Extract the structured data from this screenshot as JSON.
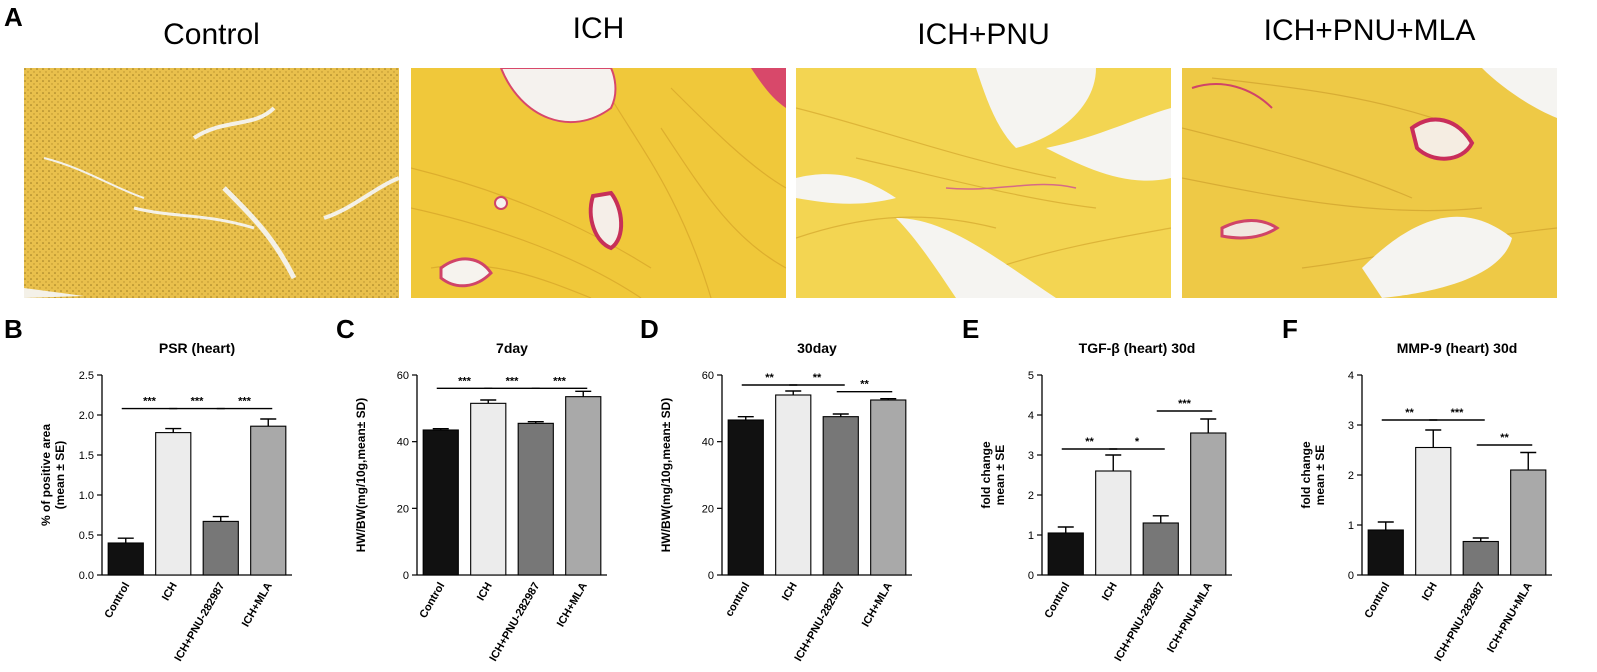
{
  "figure": {
    "panel_A_label": "A",
    "micrographs": [
      {
        "title": "Control"
      },
      {
        "title": "ICH"
      },
      {
        "title": "ICH+PNU"
      },
      {
        "title": "ICH+PNU+MLA"
      }
    ]
  },
  "chart_data": [
    {
      "panel": "B",
      "type": "bar",
      "title": "PSR (heart)",
      "ylabel": [
        "% of positive area",
        "(mean ± SE)"
      ],
      "categories": [
        "Control",
        "ICH",
        "ICH+PNU-282987",
        "ICH+MLA"
      ],
      "values": [
        0.4,
        1.78,
        0.67,
        1.86
      ],
      "errors": [
        0.06,
        0.05,
        0.06,
        0.09
      ],
      "ylim": [
        0,
        2.5
      ],
      "yticks": [
        "0.0",
        "0.5",
        "1.0",
        "1.5",
        "2.0",
        "2.5"
      ],
      "colors": [
        "#111111",
        "#ececec",
        "#777777",
        "#a9a9a9"
      ],
      "significance": [
        {
          "from": 0,
          "to": 1,
          "label": "***",
          "y": 2.08
        },
        {
          "from": 1,
          "to": 2,
          "label": "***",
          "y": 2.08
        },
        {
          "from": 2,
          "to": 3,
          "label": "***",
          "y": 2.08
        }
      ]
    },
    {
      "panel": "C",
      "type": "bar",
      "title": "7day",
      "ylabel": [
        "HW/BW(mg/10g,mean± SD)"
      ],
      "categories": [
        "Control",
        "ICH",
        "ICH+PNU-282987",
        "ICH+MLA"
      ],
      "values": [
        43.5,
        51.5,
        45.5,
        53.5
      ],
      "errors": [
        0.4,
        1.0,
        0.5,
        1.6
      ],
      "ylim": [
        0,
        60
      ],
      "yticks": [
        "0",
        "20",
        "40",
        "60"
      ],
      "colors": [
        "#111111",
        "#ececec",
        "#777777",
        "#a9a9a9"
      ],
      "significance": [
        {
          "from": 0,
          "to": 1,
          "label": "***",
          "y": 56
        },
        {
          "from": 1,
          "to": 2,
          "label": "***",
          "y": 56
        },
        {
          "from": 2,
          "to": 3,
          "label": "***",
          "y": 56
        }
      ]
    },
    {
      "panel": "D",
      "type": "bar",
      "title": "30day",
      "ylabel": [
        "HW/BW(mg/10g,mean± SD)"
      ],
      "categories": [
        "control",
        "ICH",
        "ICH+PNU-282987",
        "ICH+MLA"
      ],
      "values": [
        46.5,
        54,
        47.5,
        52.5
      ],
      "errors": [
        1.0,
        1.2,
        0.8,
        0.4
      ],
      "ylim": [
        0,
        60
      ],
      "yticks": [
        "0",
        "20",
        "40",
        "60"
      ],
      "colors": [
        "#111111",
        "#ececec",
        "#777777",
        "#a9a9a9"
      ],
      "significance": [
        {
          "from": 0,
          "to": 1,
          "label": "**",
          "y": 57
        },
        {
          "from": 1,
          "to": 2,
          "label": "**",
          "y": 57
        },
        {
          "from": 2,
          "to": 3,
          "label": "**",
          "y": 55
        }
      ]
    },
    {
      "panel": "E",
      "type": "bar",
      "title": "TGF-β (heart) 30d",
      "ylabel": [
        "fold change",
        "mean ± SE"
      ],
      "categories": [
        "Control",
        "ICH",
        "ICH+PNU-282987",
        "ICH+PNU+MLA"
      ],
      "values": [
        1.05,
        2.6,
        1.3,
        3.55
      ],
      "errors": [
        0.15,
        0.4,
        0.18,
        0.35
      ],
      "ylim": [
        0,
        5
      ],
      "yticks": [
        "0",
        "1",
        "2",
        "3",
        "4",
        "5"
      ],
      "colors": [
        "#111111",
        "#ececec",
        "#777777",
        "#a9a9a9"
      ],
      "significance": [
        {
          "from": 0,
          "to": 1,
          "label": "**",
          "y": 3.15
        },
        {
          "from": 1,
          "to": 2,
          "label": "*",
          "y": 3.15
        },
        {
          "from": 2,
          "to": 3,
          "label": "***",
          "y": 4.1
        }
      ]
    },
    {
      "panel": "F",
      "type": "bar",
      "title": "MMP-9 (heart) 30d",
      "ylabel": [
        "fold change",
        "mean ± SE"
      ],
      "categories": [
        "Control",
        "ICH",
        "ICH+PNU-282987",
        "ICH+PNU+MLA"
      ],
      "values": [
        0.9,
        2.55,
        0.67,
        2.1
      ],
      "errors": [
        0.16,
        0.35,
        0.07,
        0.35
      ],
      "ylim": [
        0,
        4
      ],
      "yticks": [
        "0",
        "1",
        "2",
        "3",
        "4"
      ],
      "colors": [
        "#111111",
        "#ececec",
        "#777777",
        "#a9a9a9"
      ],
      "significance": [
        {
          "from": 0,
          "to": 1,
          "label": "**",
          "y": 3.1
        },
        {
          "from": 1,
          "to": 2,
          "label": "***",
          "y": 3.1
        },
        {
          "from": 2,
          "to": 3,
          "label": "**",
          "y": 2.6
        }
      ]
    }
  ]
}
